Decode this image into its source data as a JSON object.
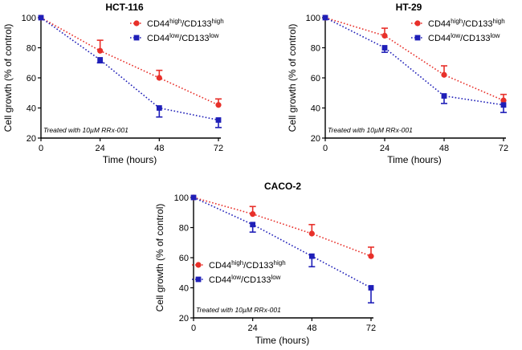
{
  "chart_data": [
    {
      "type": "line",
      "title": "HCT-116",
      "xlabel": "Time (hours)",
      "ylabel": "Cell growth (% of control)",
      "x": [
        0,
        24,
        48,
        72
      ],
      "xticks": [
        "0",
        "24",
        "48",
        "72"
      ],
      "yticks": [
        "20",
        "40",
        "60",
        "80",
        "100"
      ],
      "xlim": [
        0,
        72
      ],
      "ylim": [
        20,
        100
      ],
      "annotation": "Treated with 10µM RRx-001",
      "legend_position": "top-right",
      "series": [
        {
          "base": "CD44",
          "sup1": "high",
          "mid": "/CD133",
          "sup2": "high",
          "color": "#e8302a",
          "marker": "circle",
          "values": [
            100,
            78,
            60,
            42
          ],
          "errors": [
            0,
            7,
            5,
            4
          ]
        },
        {
          "base": "CD44",
          "sup1": "low",
          "mid": "/CD133",
          "sup2": "low",
          "color": "#1f1fb8",
          "marker": "square",
          "values": [
            100,
            72,
            40,
            32
          ],
          "errors": [
            0,
            2,
            6,
            5
          ]
        }
      ]
    },
    {
      "type": "line",
      "title": "HT-29",
      "xlabel": "Time (hours)",
      "ylabel": "Cell growth (% of control)",
      "x": [
        0,
        24,
        48,
        72
      ],
      "xticks": [
        "0",
        "24",
        "48",
        "72"
      ],
      "yticks": [
        "20",
        "40",
        "60",
        "80",
        "100"
      ],
      "xlim": [
        0,
        72
      ],
      "ylim": [
        20,
        100
      ],
      "annotation": "Treated with 10µM RRx-001",
      "legend_position": "top-right",
      "series": [
        {
          "base": "CD44",
          "sup1": "high",
          "mid": "/CD133",
          "sup2": "high",
          "color": "#e8302a",
          "marker": "circle",
          "values": [
            100,
            88,
            62,
            45
          ],
          "errors": [
            0,
            5,
            6,
            4
          ]
        },
        {
          "base": "CD44",
          "sup1": "low",
          "mid": "/CD133",
          "sup2": "low",
          "color": "#1f1fb8",
          "marker": "square",
          "values": [
            100,
            80,
            48,
            42
          ],
          "errors": [
            0,
            3,
            5,
            5
          ]
        }
      ]
    },
    {
      "type": "line",
      "title": "CACO-2",
      "xlabel": "Time (hours)",
      "ylabel": "Cell growth (% of control)",
      "x": [
        0,
        24,
        48,
        72
      ],
      "xticks": [
        "0",
        "24",
        "48",
        "72"
      ],
      "yticks": [
        "20",
        "40",
        "60",
        "80",
        "100"
      ],
      "xlim": [
        0,
        72
      ],
      "ylim": [
        20,
        100
      ],
      "annotation": "Treated with 10µM RRx-001",
      "legend_position": "center-left",
      "series": [
        {
          "base": "CD44",
          "sup1": "high",
          "mid": "/CD133",
          "sup2": "high",
          "color": "#e8302a",
          "marker": "circle",
          "values": [
            100,
            89,
            76,
            61
          ],
          "errors": [
            0,
            5,
            6,
            6
          ]
        },
        {
          "base": "CD44",
          "sup1": "low",
          "mid": "/CD133",
          "sup2": "low",
          "color": "#1f1fb8",
          "marker": "square",
          "values": [
            100,
            82,
            61,
            40
          ],
          "errors": [
            0,
            5,
            7,
            10
          ]
        }
      ]
    }
  ]
}
